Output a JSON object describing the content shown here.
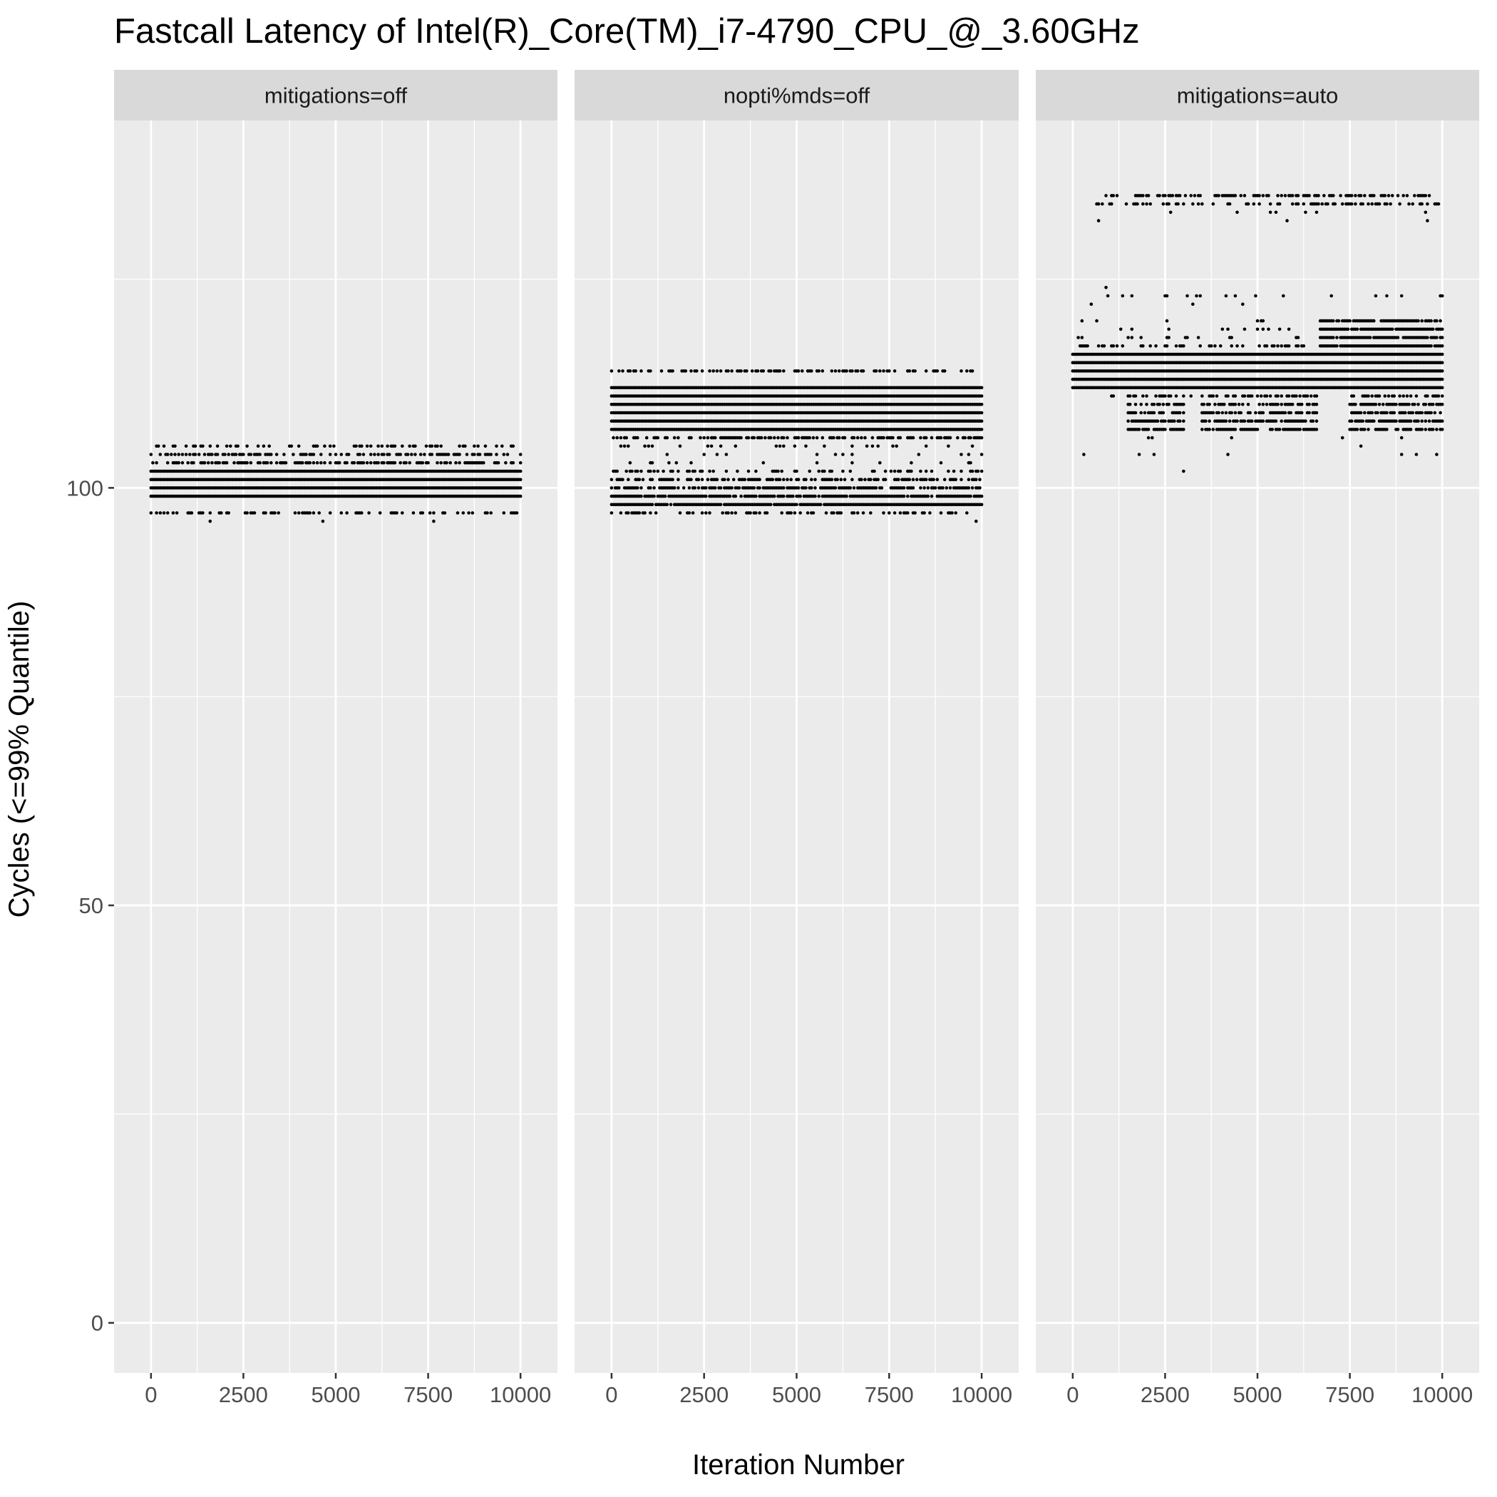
{
  "chart_data": {
    "type": "scatter",
    "title": "Fastcall Latency of Intel(R)_Core(TM)_i7-4790_CPU_@_3.60GHz",
    "xlabel": "Iteration Number",
    "ylabel": "Cycles (<=99% Quantile)",
    "xlim": [
      -1000,
      11000
    ],
    "ylim": [
      -6,
      144
    ],
    "x_ticks": [
      0,
      2500,
      5000,
      7500,
      10000
    ],
    "x_tick_labels": [
      "0",
      "2500",
      "5000",
      "7500",
      "10000"
    ],
    "y_ticks": [
      0,
      50,
      100
    ],
    "y_tick_labels": [
      "0",
      "50",
      "100"
    ],
    "grid": true,
    "legend": "none",
    "point_color": "#000000",
    "panel_background": "#ebebeb",
    "strip_background": "#d9d9d9",
    "panels": [
      {
        "name": "mitigations=off",
        "x_range": [
          0,
          10000
        ],
        "dense_levels": [
          99,
          100,
          101,
          102
        ],
        "sparse_levels": [
          {
            "y": 97,
            "density": 0.35
          },
          {
            "y": 103,
            "density": 0.55
          },
          {
            "y": 104,
            "density": 0.45
          },
          {
            "y": 105,
            "density": 0.3
          }
        ],
        "outliers": [
          [
            1600,
            96
          ],
          [
            4650,
            96
          ],
          [
            7650,
            96
          ]
        ]
      },
      {
        "name": "nopti%mds=off",
        "x_range": [
          0,
          10000
        ],
        "dense_levels": [
          107,
          108,
          109,
          110,
          111,
          112
        ],
        "sparse_levels": [
          {
            "y": 97,
            "density": 0.35
          },
          {
            "y": 98,
            "density": 0.95
          },
          {
            "y": 99,
            "density": 0.9
          },
          {
            "y": 100,
            "density": 0.75
          },
          {
            "y": 101,
            "density": 0.5
          },
          {
            "y": 102,
            "density": 0.35
          },
          {
            "y": 103,
            "density": 0.05
          },
          {
            "y": 104,
            "density": 0.05
          },
          {
            "y": 105,
            "density": 0.12
          },
          {
            "y": 106,
            "density": 0.55
          },
          {
            "y": 114,
            "density": 0.4
          }
        ],
        "outliers": [
          [
            9850,
            96
          ]
        ]
      },
      {
        "name": "mitigations=auto",
        "x_range": [
          0,
          10000
        ],
        "dense_levels": [
          112,
          113,
          114,
          115,
          116
        ],
        "segments": [
          {
            "y": 107,
            "x0": 1500,
            "x1": 3000,
            "density": 0.8
          },
          {
            "y": 108,
            "x0": 1500,
            "x1": 3000,
            "density": 0.8
          },
          {
            "y": 109,
            "x0": 1500,
            "x1": 3000,
            "density": 0.7
          },
          {
            "y": 110,
            "x0": 1500,
            "x1": 3000,
            "density": 0.6
          },
          {
            "y": 111,
            "x0": 1000,
            "x1": 3200,
            "density": 0.5
          },
          {
            "y": 107,
            "x0": 3500,
            "x1": 6600,
            "density": 0.8
          },
          {
            "y": 108,
            "x0": 3500,
            "x1": 6600,
            "density": 0.8
          },
          {
            "y": 109,
            "x0": 3500,
            "x1": 6600,
            "density": 0.7
          },
          {
            "y": 110,
            "x0": 3500,
            "x1": 6600,
            "density": 0.6
          },
          {
            "y": 111,
            "x0": 3500,
            "x1": 6600,
            "density": 0.5
          },
          {
            "y": 107,
            "x0": 7500,
            "x1": 10000,
            "density": 0.8
          },
          {
            "y": 108,
            "x0": 7500,
            "x1": 10000,
            "density": 0.8
          },
          {
            "y": 109,
            "x0": 7500,
            "x1": 10000,
            "density": 0.7
          },
          {
            "y": 110,
            "x0": 7500,
            "x1": 10000,
            "density": 0.6
          },
          {
            "y": 111,
            "x0": 7500,
            "x1": 10000,
            "density": 0.5
          },
          {
            "y": 117,
            "x0": 6700,
            "x1": 10000,
            "density": 0.95
          },
          {
            "y": 118,
            "x0": 6700,
            "x1": 10000,
            "density": 0.9
          },
          {
            "y": 119,
            "x0": 6700,
            "x1": 10000,
            "density": 0.85
          },
          {
            "y": 120,
            "x0": 6700,
            "x1": 10000,
            "density": 0.8
          },
          {
            "y": 117,
            "x0": 0,
            "x1": 6600,
            "density": 0.3
          },
          {
            "y": 118,
            "x0": 0,
            "x1": 6600,
            "density": 0.12
          },
          {
            "y": 119,
            "x0": 0,
            "x1": 6600,
            "density": 0.07
          },
          {
            "y": 120,
            "x0": 0,
            "x1": 6600,
            "density": 0.04
          },
          {
            "y": 106,
            "x0": 0,
            "x1": 10000,
            "density": 0.04
          },
          {
            "y": 104,
            "x0": 0,
            "x1": 10000,
            "density": 0.02
          },
          {
            "y": 122,
            "x0": 0,
            "x1": 10000,
            "density": 0.04
          },
          {
            "y": 123,
            "x0": 0,
            "x1": 10000,
            "density": 0.05
          },
          {
            "y": 133,
            "x0": 500,
            "x1": 10000,
            "density": 0.07
          },
          {
            "y": 134,
            "x0": 600,
            "x1": 10000,
            "density": 0.35
          },
          {
            "y": 135,
            "x0": 800,
            "x1": 9700,
            "density": 0.45
          }
        ],
        "outliers": [
          [
            3000,
            102
          ],
          [
            1800,
            104
          ],
          [
            4200,
            104
          ],
          [
            9300,
            104
          ],
          [
            7800,
            105
          ],
          [
            900,
            124
          ],
          [
            500,
            122
          ],
          [
            700,
            132
          ],
          [
            5800,
            132
          ],
          [
            9600,
            132
          ],
          [
            9950,
            123
          ]
        ]
      }
    ]
  }
}
